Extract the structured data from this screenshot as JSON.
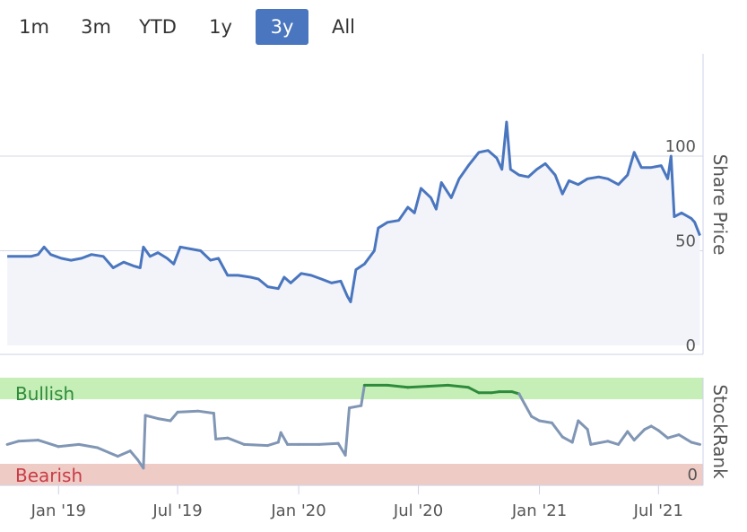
{
  "range_selector": {
    "buttons": [
      "1m",
      "3m",
      "YTD",
      "1y",
      "3y",
      "All"
    ],
    "active": "3y"
  },
  "colors": {
    "price_line": "#4a76bf",
    "price_fill": "#f3f4fa",
    "bullish_zone": "#c5efb6",
    "bearish_zone": "#efcbc6",
    "bullish_text": "#2f8a3b",
    "bearish_text": "#c83c46",
    "rank_line": "#8096b4",
    "rank_bullish_line": "#2e8b3c",
    "rank_bearish_line": "#d23c46",
    "active_button": "#4a76bf"
  },
  "chart_data": [
    {
      "type": "area",
      "name": "price-panel",
      "ylabel": "Share Price",
      "ylim": [
        0,
        120
      ],
      "yticks": [
        "0",
        "50",
        "100"
      ],
      "x_start": "2018-10",
      "x_end": "2021-09",
      "xticks": [
        "Jan '19",
        "Jul '19",
        "Jan '20",
        "Jul '20",
        "Jan '21",
        "Jul '21"
      ],
      "series": [
        {
          "values": [
            [
              "2018-10-15",
              47
            ],
            [
              "2018-11-01",
              47
            ],
            [
              "2018-11-20",
              47
            ],
            [
              "2018-12-01",
              48
            ],
            [
              "2018-12-10",
              52
            ],
            [
              "2018-12-20",
              48
            ],
            [
              "2019-01-05",
              46
            ],
            [
              "2019-01-20",
              45
            ],
            [
              "2019-02-05",
              46
            ],
            [
              "2019-02-20",
              48
            ],
            [
              "2019-03-10",
              47
            ],
            [
              "2019-03-25",
              41
            ],
            [
              "2019-04-10",
              44
            ],
            [
              "2019-04-25",
              42
            ],
            [
              "2019-05-05",
              41
            ],
            [
              "2019-05-10",
              52
            ],
            [
              "2019-05-20",
              47
            ],
            [
              "2019-06-01",
              49
            ],
            [
              "2019-06-15",
              46
            ],
            [
              "2019-06-25",
              43
            ],
            [
              "2019-07-05",
              52
            ],
            [
              "2019-07-20",
              51
            ],
            [
              "2019-08-05",
              50
            ],
            [
              "2019-08-20",
              45
            ],
            [
              "2019-09-01",
              46
            ],
            [
              "2019-09-15",
              37
            ],
            [
              "2019-10-01",
              37
            ],
            [
              "2019-10-20",
              36
            ],
            [
              "2019-11-01",
              35
            ],
            [
              "2019-11-15",
              31
            ],
            [
              "2019-12-01",
              30
            ],
            [
              "2019-12-10",
              36
            ],
            [
              "2019-12-20",
              33
            ],
            [
              "2020-01-05",
              38
            ],
            [
              "2020-01-20",
              37
            ],
            [
              "2020-02-05",
              35
            ],
            [
              "2020-02-20",
              33
            ],
            [
              "2020-03-05",
              34
            ],
            [
              "2020-03-15",
              26
            ],
            [
              "2020-03-20",
              23
            ],
            [
              "2020-03-28",
              40
            ],
            [
              "2020-04-10",
              43
            ],
            [
              "2020-04-25",
              50
            ],
            [
              "2020-05-01",
              62
            ],
            [
              "2020-05-15",
              65
            ],
            [
              "2020-06-01",
              66
            ],
            [
              "2020-06-15",
              73
            ],
            [
              "2020-06-25",
              70
            ],
            [
              "2020-07-05",
              83
            ],
            [
              "2020-07-20",
              78
            ],
            [
              "2020-07-28",
              72
            ],
            [
              "2020-08-05",
              86
            ],
            [
              "2020-08-20",
              78
            ],
            [
              "2020-09-01",
              88
            ],
            [
              "2020-09-15",
              95
            ],
            [
              "2020-10-01",
              102
            ],
            [
              "2020-10-15",
              103
            ],
            [
              "2020-10-28",
              99
            ],
            [
              "2020-11-05",
              93
            ],
            [
              "2020-11-12",
              118
            ],
            [
              "2020-11-18",
              93
            ],
            [
              "2020-12-01",
              90
            ],
            [
              "2020-12-15",
              89
            ],
            [
              "2020-12-28",
              93
            ],
            [
              "2021-01-10",
              96
            ],
            [
              "2021-01-25",
              90
            ],
            [
              "2021-02-05",
              80
            ],
            [
              "2021-02-15",
              87
            ],
            [
              "2021-03-01",
              85
            ],
            [
              "2021-03-15",
              88
            ],
            [
              "2021-04-01",
              89
            ],
            [
              "2021-04-15",
              88
            ],
            [
              "2021-05-01",
              85
            ],
            [
              "2021-05-15",
              90
            ],
            [
              "2021-05-25",
              102
            ],
            [
              "2021-06-05",
              94
            ],
            [
              "2021-06-20",
              94
            ],
            [
              "2021-07-05",
              95
            ],
            [
              "2021-07-15",
              88
            ],
            [
              "2021-07-20",
              100
            ],
            [
              "2021-07-25",
              68
            ],
            [
              "2021-08-05",
              70
            ],
            [
              "2021-08-20",
              67
            ],
            [
              "2021-08-25",
              65
            ],
            [
              "2021-09-02",
              58
            ]
          ]
        }
      ]
    },
    {
      "type": "line",
      "name": "stockrank-panel",
      "ylabel": "StockRank",
      "ylim": [
        0,
        100
      ],
      "yticks": [
        "0"
      ],
      "zones": [
        {
          "label": "Bullish",
          "from": 80,
          "to": 100
        },
        {
          "label": "Bearish",
          "from": 0,
          "to": 20
        }
      ],
      "series": [
        {
          "values": [
            [
              "2018-10-15",
              38
            ],
            [
              "2018-11-01",
              41
            ],
            [
              "2018-12-01",
              42
            ],
            [
              "2019-01-01",
              36
            ],
            [
              "2019-02-01",
              38
            ],
            [
              "2019-03-01",
              35
            ],
            [
              "2019-04-01",
              27
            ],
            [
              "2019-04-20",
              32
            ],
            [
              "2019-05-01",
              24
            ],
            [
              "2019-05-10",
              16
            ],
            [
              "2019-05-13",
              65
            ],
            [
              "2019-06-01",
              62
            ],
            [
              "2019-06-20",
              60
            ],
            [
              "2019-07-01",
              68
            ],
            [
              "2019-08-01",
              69
            ],
            [
              "2019-08-25",
              67
            ],
            [
              "2019-08-28",
              43
            ],
            [
              "2019-09-15",
              44
            ],
            [
              "2019-10-10",
              38
            ],
            [
              "2019-11-15",
              37
            ],
            [
              "2019-12-01",
              40
            ],
            [
              "2019-12-05",
              49
            ],
            [
              "2019-12-15",
              38
            ],
            [
              "2020-01-01",
              38
            ],
            [
              "2020-02-01",
              38
            ],
            [
              "2020-03-01",
              39
            ],
            [
              "2020-03-12",
              28
            ],
            [
              "2020-03-18",
              72
            ],
            [
              "2020-04-05",
              74
            ],
            [
              "2020-04-10",
              93
            ],
            [
              "2020-05-15",
              93
            ],
            [
              "2020-06-15",
              91
            ],
            [
              "2020-07-15",
              92
            ],
            [
              "2020-08-15",
              93
            ],
            [
              "2020-09-15",
              91
            ],
            [
              "2020-10-01",
              86
            ],
            [
              "2020-10-20",
              86
            ],
            [
              "2020-11-01",
              87
            ],
            [
              "2020-11-20",
              87
            ],
            [
              "2020-12-01",
              85
            ],
            [
              "2020-12-10",
              75
            ],
            [
              "2020-12-20",
              64
            ],
            [
              "2021-01-01",
              60
            ],
            [
              "2021-01-20",
              58
            ],
            [
              "2021-02-05",
              45
            ],
            [
              "2021-02-20",
              40
            ],
            [
              "2021-03-01",
              60
            ],
            [
              "2021-03-15",
              52
            ],
            [
              "2021-03-20",
              38
            ],
            [
              "2021-04-15",
              41
            ],
            [
              "2021-05-01",
              38
            ],
            [
              "2021-05-15",
              50
            ],
            [
              "2021-05-25",
              42
            ],
            [
              "2021-06-10",
              52
            ],
            [
              "2021-06-20",
              55
            ],
            [
              "2021-07-01",
              51
            ],
            [
              "2021-07-15",
              44
            ],
            [
              "2021-08-01",
              47
            ],
            [
              "2021-08-20",
              40
            ],
            [
              "2021-09-02",
              38
            ]
          ]
        }
      ]
    }
  ]
}
